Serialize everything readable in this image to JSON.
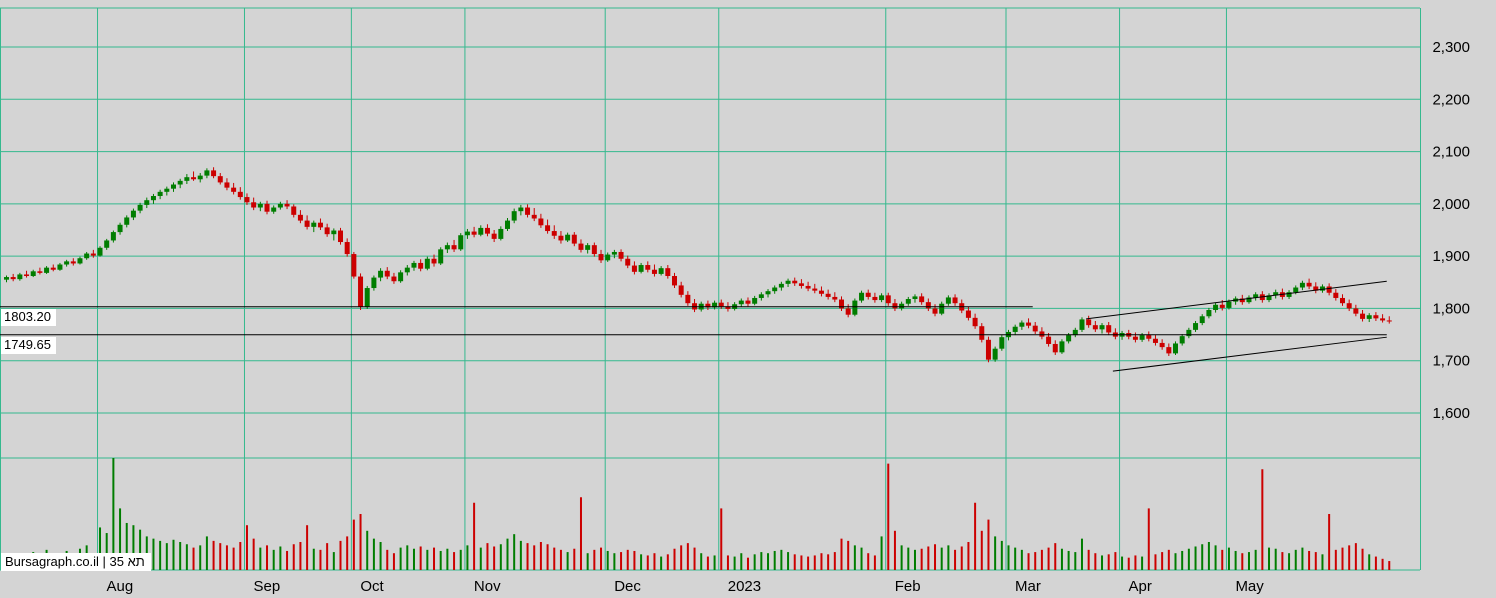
{
  "branding": {
    "label": "Bursagraph.co.il | תא 35"
  },
  "colors": {
    "background": "#d4d4d4",
    "grid": "#35b98e",
    "candle_up": "#007d00",
    "candle_down": "#cc0000",
    "overlay_line": "#000000",
    "axis_text": "#000000"
  },
  "chart_data": {
    "type": "candlestick",
    "title": "",
    "xlabel": "",
    "ylabel": "",
    "grid": true,
    "ylim": [
      1600,
      2300
    ],
    "y_ticks": [
      {
        "label": "2,300",
        "value": 2300
      },
      {
        "label": "2,200",
        "value": 2200
      },
      {
        "label": "2,100",
        "value": 2100
      },
      {
        "label": "2,000",
        "value": 2000
      },
      {
        "label": "1,900",
        "value": 1900
      },
      {
        "label": "1,800",
        "value": 1800
      },
      {
        "label": "1,700",
        "value": 1700
      },
      {
        "label": "1,600",
        "value": 1600
      }
    ],
    "x_ticks": [
      {
        "label": "Aug",
        "index": 14
      },
      {
        "label": "Sep",
        "index": 36
      },
      {
        "label": "Oct",
        "index": 52
      },
      {
        "label": "Nov",
        "index": 69
      },
      {
        "label": "Dec",
        "index": 90
      },
      {
        "label": "2023",
        "index": 107
      },
      {
        "label": "Feb",
        "index": 132
      },
      {
        "label": "Mar",
        "index": 150
      },
      {
        "label": "Apr",
        "index": 167
      },
      {
        "label": "May",
        "index": 183
      }
    ],
    "levels": [
      {
        "label": "1803.20",
        "value": 1803.2,
        "end_index": 154
      },
      {
        "label": "1749.65",
        "value": 1749.65,
        "end_index": 207
      }
    ],
    "trendlines": [
      {
        "i1": 162,
        "p1": 1780,
        "i2": 207,
        "p2": 1852
      },
      {
        "i1": 166,
        "p1": 1680,
        "i2": 207,
        "p2": 1745
      }
    ],
    "candles": [
      [
        1855,
        1863,
        1850,
        1860,
        12
      ],
      [
        1860,
        1866,
        1852,
        1856,
        10
      ],
      [
        1856,
        1868,
        1853,
        1865,
        14
      ],
      [
        1865,
        1872,
        1859,
        1862,
        9
      ],
      [
        1862,
        1874,
        1860,
        1871,
        16
      ],
      [
        1871,
        1878,
        1865,
        1868,
        11
      ],
      [
        1868,
        1881,
        1866,
        1878,
        18
      ],
      [
        1878,
        1884,
        1871,
        1874,
        13
      ],
      [
        1874,
        1887,
        1872,
        1884,
        15
      ],
      [
        1884,
        1893,
        1880,
        1890,
        17
      ],
      [
        1890,
        1896,
        1882,
        1886,
        12
      ],
      [
        1886,
        1899,
        1884,
        1896,
        19
      ],
      [
        1896,
        1908,
        1893,
        1905,
        22
      ],
      [
        1905,
        1912,
        1897,
        1901,
        14
      ],
      [
        1901,
        1919,
        1899,
        1916,
        38
      ],
      [
        1916,
        1933,
        1912,
        1930,
        33
      ],
      [
        1930,
        1949,
        1926,
        1946,
        100
      ],
      [
        1946,
        1964,
        1941,
        1960,
        55
      ],
      [
        1960,
        1978,
        1955,
        1974,
        42
      ],
      [
        1974,
        1991,
        1969,
        1987,
        40
      ],
      [
        1987,
        2002,
        1982,
        1998,
        36
      ],
      [
        1998,
        2012,
        1992,
        2007,
        30
      ],
      [
        2007,
        2019,
        2000,
        2015,
        28
      ],
      [
        2015,
        2027,
        2009,
        2023,
        26
      ],
      [
        2023,
        2033,
        2016,
        2029,
        24
      ],
      [
        2029,
        2041,
        2023,
        2037,
        27
      ],
      [
        2037,
        2048,
        2030,
        2044,
        25
      ],
      [
        2044,
        2057,
        2038,
        2051,
        23
      ],
      [
        2051,
        2062,
        2044,
        2047,
        20
      ],
      [
        2047,
        2059,
        2041,
        2054,
        22
      ],
      [
        2054,
        2068,
        2049,
        2064,
        30
      ],
      [
        2064,
        2070,
        2049,
        2053,
        26
      ],
      [
        2053,
        2059,
        2037,
        2041,
        24
      ],
      [
        2041,
        2049,
        2026,
        2031,
        22
      ],
      [
        2031,
        2040,
        2018,
        2023,
        20
      ],
      [
        2023,
        2032,
        2008,
        2013,
        25
      ],
      [
        2013,
        2020,
        1998,
        2003,
        40
      ],
      [
        2003,
        2012,
        1988,
        1993,
        28
      ],
      [
        1993,
        2004,
        1986,
        2000,
        20
      ],
      [
        2000,
        2006,
        1980,
        1985,
        22
      ],
      [
        1985,
        1997,
        1981,
        1993,
        18
      ],
      [
        1993,
        2004,
        1989,
        2000,
        21
      ],
      [
        2000,
        2007,
        1990,
        1995,
        17
      ],
      [
        1995,
        1999,
        1974,
        1979,
        23
      ],
      [
        1979,
        1988,
        1963,
        1968,
        25
      ],
      [
        1968,
        1978,
        1951,
        1956,
        40
      ],
      [
        1956,
        1968,
        1946,
        1964,
        19
      ],
      [
        1964,
        1972,
        1950,
        1955,
        18
      ],
      [
        1955,
        1962,
        1937,
        1942,
        24
      ],
      [
        1942,
        1953,
        1930,
        1949,
        16
      ],
      [
        1949,
        1954,
        1922,
        1927,
        26
      ],
      [
        1927,
        1934,
        1899,
        1904,
        30
      ],
      [
        1904,
        1908,
        1857,
        1861,
        45
      ],
      [
        1861,
        1867,
        1797,
        1803,
        50
      ],
      [
        1803,
        1843,
        1799,
        1839,
        35
      ],
      [
        1839,
        1863,
        1834,
        1859,
        28
      ],
      [
        1859,
        1877,
        1852,
        1872,
        25
      ],
      [
        1872,
        1879,
        1856,
        1861,
        18
      ],
      [
        1861,
        1868,
        1847,
        1852,
        15
      ],
      [
        1852,
        1873,
        1849,
        1869,
        20
      ],
      [
        1869,
        1883,
        1863,
        1878,
        22
      ],
      [
        1878,
        1891,
        1872,
        1887,
        19
      ],
      [
        1887,
        1894,
        1871,
        1876,
        21
      ],
      [
        1876,
        1899,
        1873,
        1895,
        18
      ],
      [
        1895,
        1903,
        1880,
        1886,
        20
      ],
      [
        1886,
        1917,
        1883,
        1913,
        17
      ],
      [
        1913,
        1926,
        1906,
        1921,
        19
      ],
      [
        1921,
        1931,
        1908,
        1913,
        16
      ],
      [
        1913,
        1944,
        1910,
        1940,
        18
      ],
      [
        1940,
        1952,
        1933,
        1947,
        22
      ],
      [
        1947,
        1956,
        1936,
        1941,
        60
      ],
      [
        1941,
        1959,
        1938,
        1954,
        20
      ],
      [
        1954,
        1961,
        1938,
        1943,
        24
      ],
      [
        1943,
        1950,
        1927,
        1933,
        21
      ],
      [
        1933,
        1957,
        1930,
        1952,
        23
      ],
      [
        1952,
        1973,
        1948,
        1968,
        28
      ],
      [
        1968,
        1991,
        1963,
        1986,
        32
      ],
      [
        1986,
        1998,
        1978,
        1993,
        26
      ],
      [
        1993,
        1999,
        1974,
        1979,
        24
      ],
      [
        1979,
        1992,
        1967,
        1972,
        22
      ],
      [
        1972,
        1981,
        1954,
        1959,
        25
      ],
      [
        1959,
        1970,
        1943,
        1948,
        23
      ],
      [
        1948,
        1959,
        1933,
        1939,
        20
      ],
      [
        1939,
        1948,
        1924,
        1930,
        18
      ],
      [
        1930,
        1945,
        1927,
        1941,
        16
      ],
      [
        1941,
        1946,
        1919,
        1924,
        19
      ],
      [
        1924,
        1932,
        1907,
        1912,
        65
      ],
      [
        1912,
        1925,
        1905,
        1921,
        15
      ],
      [
        1921,
        1926,
        1899,
        1904,
        18
      ],
      [
        1904,
        1912,
        1887,
        1892,
        20
      ],
      [
        1892,
        1907,
        1889,
        1903,
        17
      ],
      [
        1903,
        1912,
        1896,
        1908,
        15
      ],
      [
        1908,
        1913,
        1890,
        1895,
        16
      ],
      [
        1895,
        1901,
        1877,
        1882,
        18
      ],
      [
        1882,
        1890,
        1865,
        1870,
        17
      ],
      [
        1870,
        1887,
        1867,
        1883,
        14
      ],
      [
        1883,
        1890,
        1869,
        1874,
        13
      ],
      [
        1874,
        1884,
        1861,
        1866,
        15
      ],
      [
        1866,
        1881,
        1863,
        1877,
        12
      ],
      [
        1877,
        1883,
        1857,
        1862,
        14
      ],
      [
        1862,
        1868,
        1839,
        1844,
        19
      ],
      [
        1844,
        1851,
        1821,
        1826,
        22
      ],
      [
        1826,
        1833,
        1805,
        1810,
        24
      ],
      [
        1810,
        1818,
        1793,
        1798,
        20
      ],
      [
        1798,
        1813,
        1794,
        1809,
        15
      ],
      [
        1809,
        1815,
        1797,
        1802,
        12
      ],
      [
        1802,
        1815,
        1798,
        1811,
        13
      ],
      [
        1811,
        1817,
        1799,
        1804,
        55
      ],
      [
        1804,
        1812,
        1794,
        1799,
        13
      ],
      [
        1799,
        1812,
        1796,
        1808,
        12
      ],
      [
        1808,
        1819,
        1803,
        1815,
        15
      ],
      [
        1815,
        1821,
        1804,
        1809,
        11
      ],
      [
        1809,
        1824,
        1806,
        1820,
        14
      ],
      [
        1820,
        1831,
        1815,
        1827,
        16
      ],
      [
        1827,
        1837,
        1821,
        1833,
        15
      ],
      [
        1833,
        1844,
        1828,
        1840,
        17
      ],
      [
        1840,
        1851,
        1834,
        1847,
        18
      ],
      [
        1847,
        1857,
        1841,
        1853,
        16
      ],
      [
        1853,
        1859,
        1843,
        1848,
        14
      ],
      [
        1848,
        1856,
        1838,
        1843,
        13
      ],
      [
        1843,
        1851,
        1833,
        1838,
        12
      ],
      [
        1838,
        1847,
        1829,
        1834,
        13
      ],
      [
        1834,
        1842,
        1823,
        1828,
        15
      ],
      [
        1828,
        1836,
        1817,
        1822,
        14
      ],
      [
        1822,
        1831,
        1812,
        1817,
        16
      ],
      [
        1817,
        1823,
        1795,
        1800,
        28
      ],
      [
        1800,
        1808,
        1783,
        1788,
        26
      ],
      [
        1788,
        1819,
        1785,
        1815,
        22
      ],
      [
        1815,
        1834,
        1811,
        1830,
        20
      ],
      [
        1830,
        1836,
        1817,
        1822,
        15
      ],
      [
        1822,
        1830,
        1811,
        1816,
        13
      ],
      [
        1816,
        1829,
        1812,
        1825,
        30
      ],
      [
        1825,
        1830,
        1805,
        1810,
        95
      ],
      [
        1810,
        1818,
        1795,
        1800,
        35
      ],
      [
        1800,
        1813,
        1796,
        1809,
        22
      ],
      [
        1809,
        1822,
        1805,
        1818,
        20
      ],
      [
        1818,
        1827,
        1811,
        1823,
        18
      ],
      [
        1823,
        1829,
        1807,
        1812,
        19
      ],
      [
        1812,
        1819,
        1795,
        1800,
        21
      ],
      [
        1800,
        1808,
        1785,
        1790,
        23
      ],
      [
        1790,
        1813,
        1787,
        1809,
        20
      ],
      [
        1809,
        1825,
        1805,
        1821,
        22
      ],
      [
        1821,
        1827,
        1805,
        1810,
        18
      ],
      [
        1810,
        1817,
        1791,
        1796,
        21
      ],
      [
        1796,
        1803,
        1777,
        1782,
        25
      ],
      [
        1782,
        1790,
        1761,
        1766,
        60
      ],
      [
        1766,
        1772,
        1735,
        1740,
        35
      ],
      [
        1740,
        1746,
        1697,
        1702,
        45
      ],
      [
        1702,
        1727,
        1698,
        1723,
        30
      ],
      [
        1723,
        1749,
        1719,
        1745,
        26
      ],
      [
        1745,
        1759,
        1739,
        1755,
        22
      ],
      [
        1755,
        1769,
        1749,
        1765,
        20
      ],
      [
        1765,
        1777,
        1759,
        1773,
        18
      ],
      [
        1773,
        1781,
        1762,
        1767,
        15
      ],
      [
        1767,
        1774,
        1751,
        1756,
        16
      ],
      [
        1756,
        1764,
        1741,
        1746,
        18
      ],
      [
        1746,
        1753,
        1727,
        1732,
        20
      ],
      [
        1732,
        1739,
        1711,
        1716,
        24
      ],
      [
        1716,
        1741,
        1713,
        1737,
        19
      ],
      [
        1737,
        1753,
        1733,
        1749,
        17
      ],
      [
        1749,
        1763,
        1745,
        1759,
        16
      ],
      [
        1759,
        1783,
        1755,
        1779,
        28
      ],
      [
        1779,
        1786,
        1763,
        1768,
        18
      ],
      [
        1768,
        1776,
        1755,
        1760,
        15
      ],
      [
        1760,
        1772,
        1752,
        1768,
        13
      ],
      [
        1768,
        1774,
        1749,
        1754,
        14
      ],
      [
        1754,
        1762,
        1741,
        1746,
        16
      ],
      [
        1746,
        1757,
        1740,
        1753,
        12
      ],
      [
        1753,
        1759,
        1741,
        1746,
        11
      ],
      [
        1746,
        1754,
        1735,
        1740,
        13
      ],
      [
        1740,
        1753,
        1736,
        1749,
        12
      ],
      [
        1749,
        1756,
        1737,
        1742,
        55
      ],
      [
        1742,
        1749,
        1729,
        1734,
        14
      ],
      [
        1734,
        1741,
        1721,
        1726,
        16
      ],
      [
        1726,
        1733,
        1709,
        1714,
        18
      ],
      [
        1714,
        1737,
        1711,
        1733,
        15
      ],
      [
        1733,
        1751,
        1729,
        1747,
        17
      ],
      [
        1747,
        1763,
        1743,
        1759,
        19
      ],
      [
        1759,
        1776,
        1755,
        1772,
        21
      ],
      [
        1772,
        1789,
        1768,
        1785,
        23
      ],
      [
        1785,
        1801,
        1781,
        1797,
        25
      ],
      [
        1797,
        1811,
        1792,
        1807,
        22
      ],
      [
        1807,
        1816,
        1796,
        1801,
        18
      ],
      [
        1801,
        1817,
        1798,
        1813,
        20
      ],
      [
        1813,
        1823,
        1807,
        1819,
        17
      ],
      [
        1819,
        1826,
        1807,
        1812,
        15
      ],
      [
        1812,
        1825,
        1809,
        1821,
        16
      ],
      [
        1821,
        1831,
        1815,
        1827,
        18
      ],
      [
        1827,
        1833,
        1811,
        1816,
        90
      ],
      [
        1816,
        1829,
        1812,
        1825,
        20
      ],
      [
        1825,
        1836,
        1819,
        1831,
        19
      ],
      [
        1831,
        1838,
        1817,
        1822,
        16
      ],
      [
        1822,
        1835,
        1818,
        1831,
        15
      ],
      [
        1831,
        1844,
        1827,
        1840,
        18
      ],
      [
        1840,
        1853,
        1835,
        1849,
        20
      ],
      [
        1849,
        1857,
        1837,
        1842,
        17
      ],
      [
        1842,
        1850,
        1829,
        1834,
        16
      ],
      [
        1834,
        1846,
        1830,
        1842,
        14
      ],
      [
        1842,
        1848,
        1825,
        1830,
        50
      ],
      [
        1830,
        1837,
        1815,
        1820,
        18
      ],
      [
        1820,
        1827,
        1805,
        1810,
        20
      ],
      [
        1810,
        1817,
        1795,
        1800,
        22
      ],
      [
        1800,
        1807,
        1785,
        1790,
        24
      ],
      [
        1790,
        1797,
        1775,
        1780,
        19
      ],
      [
        1780,
        1791,
        1774,
        1787,
        14
      ],
      [
        1787,
        1793,
        1776,
        1781,
        12
      ],
      [
        1781,
        1789,
        1773,
        1777,
        10
      ],
      [
        1777,
        1785,
        1771,
        1775,
        8
      ]
    ]
  }
}
